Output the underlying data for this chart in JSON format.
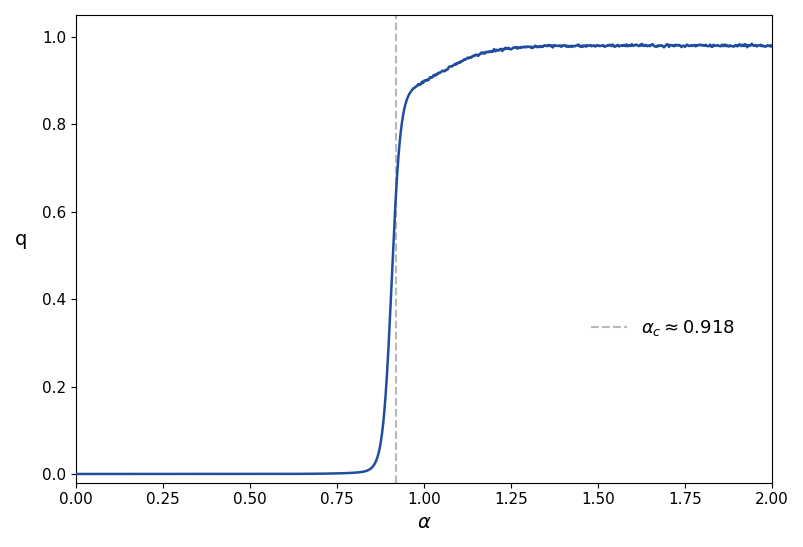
{
  "title": "",
  "xlabel": "α",
  "ylabel": "q",
  "xlim": [
    0.0,
    2.0
  ],
  "ylim": [
    -0.02,
    1.05
  ],
  "alpha_c": 0.918,
  "line_color": "#1f4e9e",
  "vline_color": "#b8b8b8",
  "xticks": [
    0.0,
    0.25,
    0.5,
    0.75,
    1.0,
    1.25,
    1.5,
    1.75,
    2.0
  ],
  "yticks": [
    0.0,
    0.2,
    0.4,
    0.6,
    0.8,
    1.0
  ],
  "noise_amplitude": 0.006,
  "background_color": "#ffffff"
}
